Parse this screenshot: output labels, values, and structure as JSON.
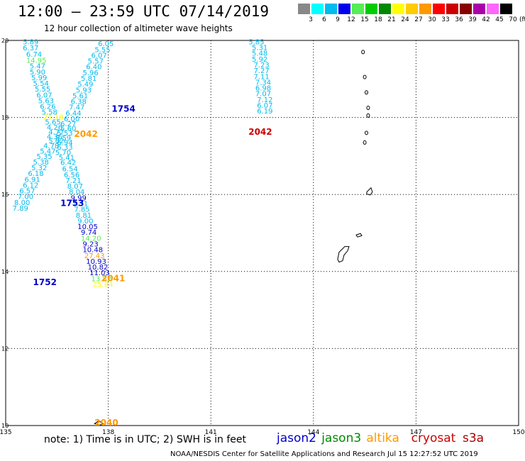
{
  "title": "12:00 — 23:59 UTC 07/14/2019",
  "subtitle": "12 hour collection of altimeter wave heights",
  "legend": {
    "labels": [
      "3",
      "6",
      "9",
      "12",
      "15",
      "18",
      "21",
      "24",
      "27",
      "30",
      "33",
      "36",
      "39",
      "42",
      "45",
      "70"
    ],
    "colors": [
      "#888888",
      "#00ffff",
      "#00bbee",
      "#0000ee",
      "#55ee55",
      "#00cc00",
      "#008800",
      "#ffff00",
      "#ffcc00",
      "#ff9900",
      "#ff0000",
      "#cc0000",
      "#880000",
      "#aa00aa",
      "#ff66ff",
      "#000000"
    ],
    "unit": "(ft)"
  },
  "map": {
    "lon_ticks": [
      "135",
      "138",
      "141",
      "144",
      "147",
      "150"
    ],
    "lat_ticks": [
      "20",
      "18",
      "16",
      "14",
      "12",
      "10"
    ],
    "time_labels": [
      {
        "text": "1754",
        "color": "#0000cc",
        "lon": 138.1,
        "lat": 18.15
      },
      {
        "text": "2042",
        "color": "#ff9900",
        "lon": 137.0,
        "lat": 17.5
      },
      {
        "text": "2042",
        "color": "#cc0000",
        "lon": 142.1,
        "lat": 17.55
      },
      {
        "text": "1753",
        "color": "#0000cc",
        "lon": 136.6,
        "lat": 15.7
      },
      {
        "text": "2041",
        "color": "#ff9900",
        "lon": 137.8,
        "lat": 13.75
      },
      {
        "text": "1752",
        "color": "#0000cc",
        "lon": 135.8,
        "lat": 13.65
      },
      {
        "text": "2040",
        "color": "#ff9900",
        "lon": 137.6,
        "lat": 10.0
      }
    ],
    "wave_heights": [
      {
        "v": "5.89",
        "lon": 135.5,
        "lat": 19.9,
        "c": "#00bbee"
      },
      {
        "v": "6.37",
        "lon": 135.5,
        "lat": 19.74,
        "c": "#00bbee"
      },
      {
        "v": "6.74",
        "lon": 135.6,
        "lat": 19.58,
        "c": "#00bbee"
      },
      {
        "v": "14.95",
        "lon": 135.6,
        "lat": 19.42,
        "c": "#55ee55"
      },
      {
        "v": "5.47",
        "lon": 135.7,
        "lat": 19.27,
        "c": "#00bbee"
      },
      {
        "v": "5.90",
        "lon": 135.7,
        "lat": 19.12,
        "c": "#00bbee"
      },
      {
        "v": "5.99",
        "lon": 135.75,
        "lat": 18.97,
        "c": "#00bbee"
      },
      {
        "v": "5.54",
        "lon": 135.8,
        "lat": 18.82,
        "c": "#00bbee"
      },
      {
        "v": "5.55",
        "lon": 135.85,
        "lat": 18.67,
        "c": "#00bbee"
      },
      {
        "v": "6.07",
        "lon": 135.9,
        "lat": 18.52,
        "c": "#00bbee"
      },
      {
        "v": "5.63",
        "lon": 135.95,
        "lat": 18.37,
        "c": "#00bbee"
      },
      {
        "v": "6.26",
        "lon": 136.0,
        "lat": 18.22,
        "c": "#00bbee"
      },
      {
        "v": "5.58",
        "lon": 136.05,
        "lat": 18.08,
        "c": "#00bbee"
      },
      {
        "v": "21.18",
        "lon": 136.1,
        "lat": 17.95,
        "c": "#ffff00"
      },
      {
        "v": "5.65",
        "lon": 136.15,
        "lat": 17.82,
        "c": "#00bbee"
      },
      {
        "v": "4.26",
        "lon": 136.2,
        "lat": 17.68,
        "c": "#00bbee"
      },
      {
        "v": "4.77",
        "lon": 136.25,
        "lat": 17.56,
        "c": "#00bbee"
      },
      {
        "v": "4.36",
        "lon": 136.2,
        "lat": 17.44,
        "c": "#00bbee"
      },
      {
        "v": "5.02",
        "lon": 136.25,
        "lat": 17.33,
        "c": "#00bbee"
      },
      {
        "v": "4.78",
        "lon": 136.1,
        "lat": 17.2,
        "c": "#00bbee"
      },
      {
        "v": "5.47",
        "lon": 136.0,
        "lat": 17.06,
        "c": "#00bbee"
      },
      {
        "v": "5.35",
        "lon": 135.9,
        "lat": 16.92,
        "c": "#00bbee"
      },
      {
        "v": "5.38",
        "lon": 135.8,
        "lat": 16.78,
        "c": "#00bbee"
      },
      {
        "v": "5.32",
        "lon": 135.75,
        "lat": 16.63,
        "c": "#00bbee"
      },
      {
        "v": "6.18",
        "lon": 135.65,
        "lat": 16.48,
        "c": "#00bbee"
      },
      {
        "v": "6.91",
        "lon": 135.55,
        "lat": 16.33,
        "c": "#00bbee"
      },
      {
        "v": "6.12",
        "lon": 135.5,
        "lat": 16.18,
        "c": "#00bbee"
      },
      {
        "v": "6.57",
        "lon": 135.4,
        "lat": 16.03,
        "c": "#00bbee"
      },
      {
        "v": "7.00",
        "lon": 135.35,
        "lat": 15.88,
        "c": "#00bbee"
      },
      {
        "v": "8.00",
        "lon": 135.25,
        "lat": 15.73,
        "c": "#00bbee"
      },
      {
        "v": "7.89",
        "lon": 135.2,
        "lat": 15.58,
        "c": "#00bbee"
      },
      {
        "v": "6.05",
        "lon": 137.7,
        "lat": 19.85,
        "c": "#00bbee"
      },
      {
        "v": "5.55",
        "lon": 137.6,
        "lat": 19.7,
        "c": "#00bbee"
      },
      {
        "v": "6.07",
        "lon": 137.5,
        "lat": 19.55,
        "c": "#00bbee"
      },
      {
        "v": "5.57",
        "lon": 137.4,
        "lat": 19.4,
        "c": "#00bbee"
      },
      {
        "v": "6.40",
        "lon": 137.35,
        "lat": 19.25,
        "c": "#00bbee"
      },
      {
        "v": "5.96",
        "lon": 137.25,
        "lat": 19.1,
        "c": "#00bbee"
      },
      {
        "v": "5.81",
        "lon": 137.2,
        "lat": 18.95,
        "c": "#00bbee"
      },
      {
        "v": "5.49",
        "lon": 137.1,
        "lat": 18.8,
        "c": "#00bbee"
      },
      {
        "v": "5.93",
        "lon": 137.05,
        "lat": 18.65,
        "c": "#00bbee"
      },
      {
        "v": "5.61",
        "lon": 136.95,
        "lat": 18.5,
        "c": "#00bbee"
      },
      {
        "v": "6.38",
        "lon": 136.9,
        "lat": 18.35,
        "c": "#00bbee"
      },
      {
        "v": "7.47",
        "lon": 136.85,
        "lat": 18.2,
        "c": "#00bbee"
      },
      {
        "v": "6.44",
        "lon": 136.75,
        "lat": 18.05,
        "c": "#00bbee"
      },
      {
        "v": "6.00",
        "lon": 136.7,
        "lat": 17.9,
        "c": "#00bbee"
      },
      {
        "v": "6.27",
        "lon": 136.6,
        "lat": 17.77,
        "c": "#00bbee"
      },
      {
        "v": "5.60",
        "lon": 136.6,
        "lat": 17.65,
        "c": "#00bbee"
      },
      {
        "v": "5.53",
        "lon": 136.5,
        "lat": 17.53,
        "c": "#00bbee"
      },
      {
        "v": "5.59",
        "lon": 136.45,
        "lat": 17.4,
        "c": "#00bbee"
      },
      {
        "v": "6.94",
        "lon": 136.5,
        "lat": 17.28,
        "c": "#00bbee"
      },
      {
        "v": "6.33",
        "lon": 136.5,
        "lat": 17.16,
        "c": "#00bbee"
      },
      {
        "v": "5.70",
        "lon": 136.45,
        "lat": 17.03,
        "c": "#00bbee"
      },
      {
        "v": "5.41",
        "lon": 136.55,
        "lat": 16.9,
        "c": "#00bbee"
      },
      {
        "v": "6.42",
        "lon": 136.6,
        "lat": 16.77,
        "c": "#00bbee"
      },
      {
        "v": "6.54",
        "lon": 136.65,
        "lat": 16.6,
        "c": "#00bbee"
      },
      {
        "v": "6.56",
        "lon": 136.7,
        "lat": 16.45,
        "c": "#00bbee"
      },
      {
        "v": "7.21",
        "lon": 136.75,
        "lat": 16.3,
        "c": "#00bbee"
      },
      {
        "v": "8.07",
        "lon": 136.8,
        "lat": 16.15,
        "c": "#00bbee"
      },
      {
        "v": "8.04",
        "lon": 136.85,
        "lat": 16.0,
        "c": "#00bbee"
      },
      {
        "v": "9.99",
        "lon": 136.9,
        "lat": 15.85,
        "c": "#0000cc"
      },
      {
        "v": "7.31",
        "lon": 136.95,
        "lat": 15.7,
        "c": "#00bbee"
      },
      {
        "v": "7.85",
        "lon": 137.0,
        "lat": 15.55,
        "c": "#00bbee"
      },
      {
        "v": "8.81",
        "lon": 137.05,
        "lat": 15.4,
        "c": "#00bbee"
      },
      {
        "v": "9.00",
        "lon": 137.1,
        "lat": 15.25,
        "c": "#00bbee"
      },
      {
        "v": "10.05",
        "lon": 137.1,
        "lat": 15.1,
        "c": "#0000cc"
      },
      {
        "v": "9.74",
        "lon": 137.2,
        "lat": 14.95,
        "c": "#0000cc"
      },
      {
        "v": "14.20",
        "lon": 137.2,
        "lat": 14.8,
        "c": "#55ee55"
      },
      {
        "v": "9.23",
        "lon": 137.25,
        "lat": 14.65,
        "c": "#0000cc"
      },
      {
        "v": "10.48",
        "lon": 137.25,
        "lat": 14.5,
        "c": "#0000cc"
      },
      {
        "v": "27.43",
        "lon": 137.3,
        "lat": 14.35,
        "c": "#ff9900"
      },
      {
        "v": "10.93",
        "lon": 137.35,
        "lat": 14.2,
        "c": "#0000cc"
      },
      {
        "v": "10.82",
        "lon": 137.4,
        "lat": 14.05,
        "c": "#0000cc"
      },
      {
        "v": "11.03",
        "lon": 137.45,
        "lat": 13.9,
        "c": "#0000cc"
      },
      {
        "v": "13.82",
        "lon": 137.5,
        "lat": 13.75,
        "c": "#55ee55"
      },
      {
        "v": "25.84",
        "lon": 137.55,
        "lat": 13.6,
        "c": "#ffff00"
      },
      {
        "v": "5.85",
        "lon": 142.1,
        "lat": 19.9,
        "c": "#00bbee"
      },
      {
        "v": "5.31",
        "lon": 142.2,
        "lat": 19.75,
        "c": "#00bbee"
      },
      {
        "v": "5.48",
        "lon": 142.2,
        "lat": 19.6,
        "c": "#00bbee"
      },
      {
        "v": "5.92",
        "lon": 142.2,
        "lat": 19.45,
        "c": "#00bbee"
      },
      {
        "v": "7.23",
        "lon": 142.25,
        "lat": 19.3,
        "c": "#00bbee"
      },
      {
        "v": "7.27",
        "lon": 142.25,
        "lat": 19.15,
        "c": "#00bbee"
      },
      {
        "v": "7.11",
        "lon": 142.25,
        "lat": 19.0,
        "c": "#00bbee"
      },
      {
        "v": "7.34",
        "lon": 142.3,
        "lat": 18.85,
        "c": "#00bbee"
      },
      {
        "v": "6.98",
        "lon": 142.3,
        "lat": 18.7,
        "c": "#00bbee"
      },
      {
        "v": "7.07",
        "lon": 142.3,
        "lat": 18.55,
        "c": "#00bbee"
      },
      {
        "v": "7.12",
        "lon": 142.35,
        "lat": 18.4,
        "c": "#00bbee"
      },
      {
        "v": "6.07",
        "lon": 142.35,
        "lat": 18.25,
        "c": "#00bbee"
      },
      {
        "v": "6.19",
        "lon": 142.35,
        "lat": 18.1,
        "c": "#00bbee"
      }
    ]
  },
  "note": "note: 1) Time is in UTC; 2) SWH is in feet",
  "satellites": [
    {
      "name": "jason2",
      "color": "#0000cc"
    },
    {
      "name": "jason3",
      "color": "#008800"
    },
    {
      "name": "altika",
      "color": "#ff9900"
    },
    {
      "name": "cryosat",
      "color": "#cc0000"
    },
    {
      "name": "s3a",
      "color": "#aa0000"
    }
  ],
  "credit": "NOAA/NESDIS Center for Satellite Applications and Research   Jul 15 12:27:52 UTC 2019"
}
